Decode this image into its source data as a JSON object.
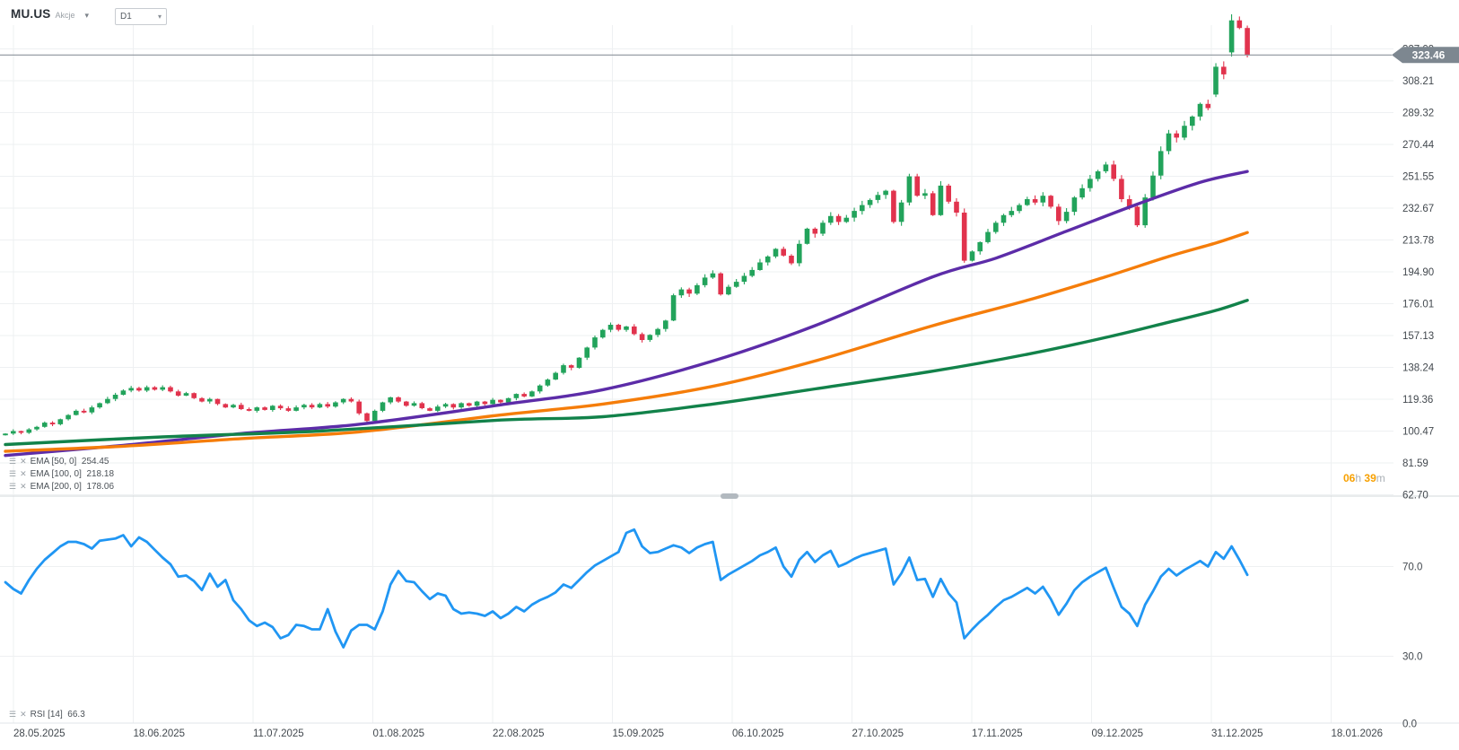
{
  "header": {
    "symbol": "MU.US",
    "instrument_type": "Akcje",
    "timeframe": "D1"
  },
  "icons": {
    "caret_down": "▾",
    "settings": "☰",
    "close": "✕"
  },
  "price_panel": {
    "indicators": [
      {
        "label": "EMA",
        "params": "[50, 0]",
        "value": "254.45"
      },
      {
        "label": "EMA",
        "params": "[100, 0]",
        "value": "218.18"
      },
      {
        "label": "EMA",
        "params": "[200, 0]",
        "value": "178.06"
      }
    ],
    "current_price": "323.46",
    "countdown": {
      "hours": "06",
      "hours_unit": "h",
      "minutes": "39",
      "minutes_unit": "m"
    }
  },
  "rsi_panel": {
    "indicator": {
      "label": "RSI",
      "params": "[14]",
      "value": "66.3"
    }
  },
  "colors": {
    "candle_up": "#22a35b",
    "candle_down": "#e1334d",
    "ema50": "#5c2ca8",
    "ema100": "#f57d0a",
    "ema200": "#12824a",
    "rsi": "#2096f3",
    "grid": "#eef0f2",
    "axis_text": "#42484e",
    "current_line": "#8b939b",
    "badge_bg": "#7d8790",
    "badge_text": "#ffffff",
    "divider": "#d3d8db",
    "handle": "#b2b9bf"
  },
  "chart_data": {
    "type": "candlestick",
    "title": "MU.US daily candlestick chart with EMA overlays and RSI",
    "timeframe": "D1",
    "x_tick_labels": [
      "28.05.2025",
      "18.06.2025",
      "11.07.2025",
      "01.08.2025",
      "22.08.2025",
      "15.09.2025",
      "06.10.2025",
      "27.10.2025",
      "17.11.2025",
      "09.12.2025",
      "31.12.2025",
      "18.01.2026"
    ],
    "price_ticks": [
      327.09,
      308.21,
      289.32,
      270.44,
      251.55,
      232.67,
      213.78,
      194.9,
      176.01,
      157.13,
      138.24,
      119.36,
      100.47,
      81.59,
      62.7
    ],
    "current_price": 323.46,
    "candles": {
      "first_open": 98,
      "opens_overrides": {
        "154": 300,
        "156": 325
      },
      "closes": [
        99,
        100.5,
        99.5,
        101.5,
        103,
        105.5,
        104.5,
        107.5,
        110,
        112.5,
        111.5,
        114.5,
        117,
        119.5,
        122,
        124.5,
        126,
        124.5,
        126.5,
        125,
        126.5,
        124,
        121.5,
        123,
        120,
        118,
        119.5,
        116.5,
        114.5,
        116,
        113.5,
        112.5,
        114.5,
        113,
        115.5,
        114,
        112.5,
        114.5,
        116,
        114.5,
        116.5,
        115,
        117.5,
        119.5,
        118,
        111,
        106.5,
        112.5,
        117.5,
        120.5,
        118,
        115.5,
        117,
        114,
        112.5,
        115,
        116.5,
        114.5,
        117,
        115.5,
        118,
        116.5,
        119,
        117.5,
        120,
        122.5,
        121,
        124,
        127.5,
        131,
        135,
        139.5,
        138,
        144,
        150,
        156,
        160.5,
        163.5,
        160.5,
        162.5,
        158,
        154.5,
        157.5,
        161,
        166,
        181,
        184.5,
        182,
        187,
        191.5,
        194,
        181.5,
        186,
        189,
        192.5,
        196,
        200.5,
        204,
        208.5,
        204.5,
        200,
        211.5,
        220.5,
        217.5,
        224,
        228,
        224.5,
        227,
        231,
        234.5,
        237.5,
        240.5,
        243,
        224.5,
        236,
        251.5,
        240,
        241.5,
        228.5,
        246,
        236.5,
        230,
        201.5,
        207,
        212.5,
        218.5,
        224,
        228.5,
        231,
        234.5,
        238,
        236,
        240,
        233.5,
        225,
        230.5,
        239,
        244.5,
        250,
        254.5,
        258.5,
        250,
        238,
        233.5,
        222.5,
        239,
        252,
        266.5,
        277,
        274.5,
        281.5,
        287,
        294.5,
        292,
        316.5,
        312,
        344,
        339.5,
        323.46
      ]
    },
    "overlays": [
      {
        "name": "EMA 50",
        "period": 50,
        "shift": 0,
        "last_value": 254.45,
        "color": "#5c2ca8",
        "points": [
          [
            0,
            86
          ],
          [
            15,
            92
          ],
          [
            30,
            99
          ],
          [
            45,
            104.5
          ],
          [
            63,
            116
          ],
          [
            76,
            125
          ],
          [
            90,
            142
          ],
          [
            103,
            163
          ],
          [
            118,
            192
          ],
          [
            126,
            203
          ],
          [
            135,
            219
          ],
          [
            144,
            235
          ],
          [
            152,
            248
          ],
          [
            158,
            254.45
          ]
        ]
      },
      {
        "name": "EMA 100",
        "period": 100,
        "shift": 0,
        "last_value": 218.18,
        "color": "#f57d0a",
        "points": [
          [
            0,
            88.5
          ],
          [
            15,
            91.5
          ],
          [
            30,
            96
          ],
          [
            45,
            100
          ],
          [
            63,
            110
          ],
          [
            76,
            116.5
          ],
          [
            90,
            127
          ],
          [
            103,
            142
          ],
          [
            118,
            163
          ],
          [
            130,
            178
          ],
          [
            140,
            192
          ],
          [
            148,
            204
          ],
          [
            154,
            212
          ],
          [
            158,
            218.18
          ]
        ]
      },
      {
        "name": "EMA 200",
        "period": 200,
        "shift": 0,
        "last_value": 178.06,
        "color": "#12824a",
        "points": [
          [
            0,
            92.5
          ],
          [
            20,
            97
          ],
          [
            40,
            100.5
          ],
          [
            63,
            107
          ],
          [
            76,
            109
          ],
          [
            90,
            116.5
          ],
          [
            103,
            125.5
          ],
          [
            118,
            136
          ],
          [
            130,
            146
          ],
          [
            140,
            156
          ],
          [
            148,
            165
          ],
          [
            154,
            172
          ],
          [
            158,
            178.06
          ]
        ]
      }
    ],
    "rsi": {
      "name": "RSI 14",
      "period": 14,
      "last_value": 66.3,
      "color": "#2096f3",
      "ticks": [
        70.0,
        30.0,
        0.0
      ],
      "values": [
        63,
        60,
        58,
        64,
        69,
        73,
        76,
        79,
        81,
        81,
        80,
        78,
        81.5,
        82,
        82.5,
        84,
        79,
        83,
        81,
        77.5,
        74,
        71,
        65.5,
        66,
        63.5,
        59.5,
        66.8,
        61,
        64,
        55,
        51,
        46,
        43.5,
        45,
        43,
        38,
        39.5,
        44,
        43.5,
        42,
        42,
        51,
        41,
        34,
        41.5,
        44,
        44,
        42,
        50,
        62,
        68,
        63.5,
        63,
        59,
        55.5,
        58,
        57,
        51,
        49,
        49.5,
        49,
        48,
        50,
        47,
        49,
        52,
        50,
        53,
        55,
        56.5,
        58.5,
        62,
        60.5,
        64,
        67.5,
        70.5,
        72.5,
        74.5,
        76.5,
        85,
        86.5,
        79,
        76,
        76.5,
        78,
        79.5,
        78.5,
        76,
        78.5,
        80,
        81,
        64,
        66.5,
        68.5,
        70.5,
        72.5,
        75,
        76.5,
        78.5,
        70,
        65.5,
        73,
        76.5,
        72,
        75,
        77,
        70,
        71.5,
        73.5,
        75,
        76,
        77,
        78,
        62,
        67,
        74,
        64,
        64.5,
        56.5,
        64.5,
        58,
        54,
        38,
        42,
        45.5,
        48.5,
        52,
        55,
        56.5,
        58.5,
        60.5,
        58,
        61,
        55.5,
        48.5,
        53.5,
        59.5,
        63,
        65.5,
        67.5,
        69.5,
        60.5,
        52,
        49,
        43.5,
        53,
        59,
        65.5,
        69,
        66,
        68.5,
        70.5,
        72.5,
        70,
        76.5,
        73.5,
        79,
        73,
        66.3
      ]
    }
  }
}
